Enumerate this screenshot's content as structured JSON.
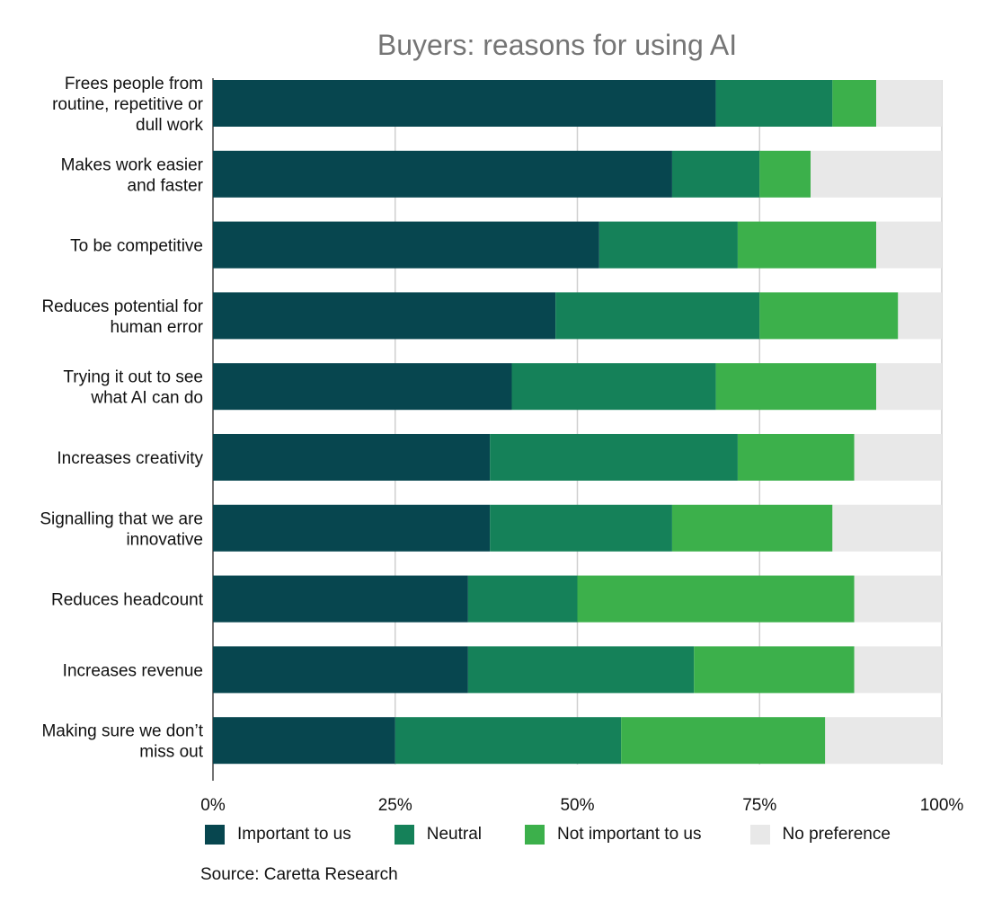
{
  "chart_data": {
    "type": "bar",
    "orientation": "horizontal",
    "stacked": true,
    "title": "Buyers: reasons for using AI",
    "categories": [
      [
        "Frees people from",
        "routine, repetitive or",
        "dull work"
      ],
      [
        "Makes work easier",
        "and faster"
      ],
      [
        "To be competitive"
      ],
      [
        "Reduces potential for",
        "human error"
      ],
      [
        "Trying it out to see",
        "what AI can do"
      ],
      [
        "Increases creativity"
      ],
      [
        "Signalling that we are",
        "innovative"
      ],
      [
        "Reduces headcount"
      ],
      [
        "Increases revenue"
      ],
      [
        "Making sure we don’t",
        "miss out"
      ]
    ],
    "series": [
      {
        "name": "Important to us",
        "color": "#07464f",
        "values": [
          69,
          63,
          53,
          47,
          41,
          38,
          38,
          35,
          35,
          25
        ]
      },
      {
        "name": "Neutral",
        "color": "#158159",
        "values": [
          16,
          12,
          19,
          28,
          28,
          34,
          25,
          15,
          31,
          31
        ]
      },
      {
        "name": "Not important to us",
        "color": "#3cb04b",
        "values": [
          6,
          7,
          19,
          19,
          22,
          16,
          22,
          38,
          22,
          28
        ]
      },
      {
        "name": "No preference",
        "color": "#e8e8e8",
        "values": [
          9,
          18,
          9,
          6,
          9,
          12,
          15,
          12,
          12,
          16
        ]
      }
    ],
    "xlim": [
      0,
      100
    ],
    "x_ticks": [
      "0%",
      "25%",
      "50%",
      "75%",
      "100%"
    ],
    "grid": true,
    "legend_position": "bottom"
  },
  "source": "Source: Caretta Research"
}
